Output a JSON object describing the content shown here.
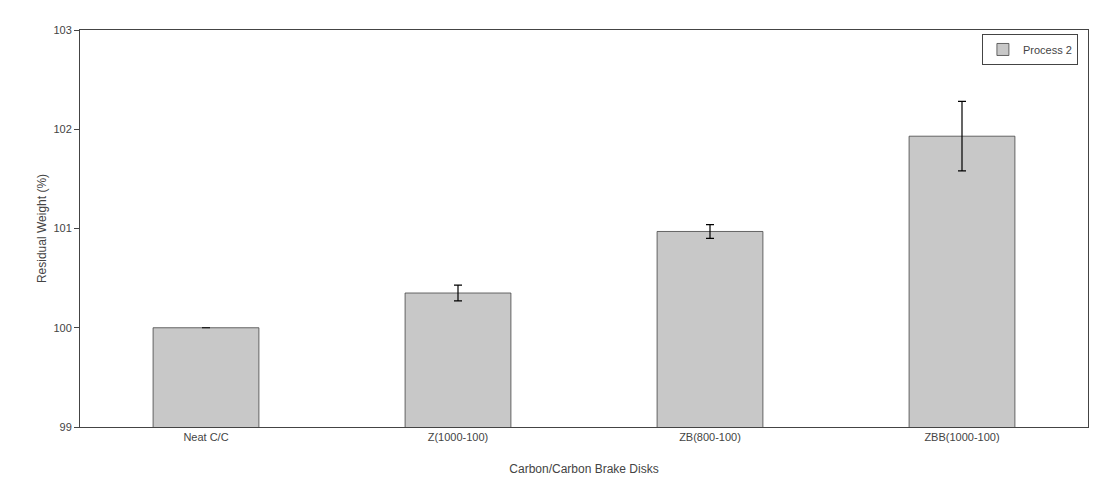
{
  "chart_data": {
    "type": "bar",
    "categories": [
      "Neat C/C",
      "Z(1000-100)",
      "ZB(800-100)",
      "ZBB(1000-100)"
    ],
    "series": [
      {
        "name": "Process 2",
        "color": "#c8c8c8",
        "values": [
          100.0,
          100.35,
          100.97,
          101.93
        ],
        "errors": [
          0.0,
          0.08,
          0.07,
          0.35
        ]
      }
    ],
    "xlabel": "Carbon/Carbon Brake Disks",
    "ylabel": "Residual Weight (%)",
    "ylim": [
      99,
      103
    ],
    "yticks": [
      99,
      100,
      101,
      102,
      103
    ],
    "grid": false,
    "legend": "upper right"
  }
}
